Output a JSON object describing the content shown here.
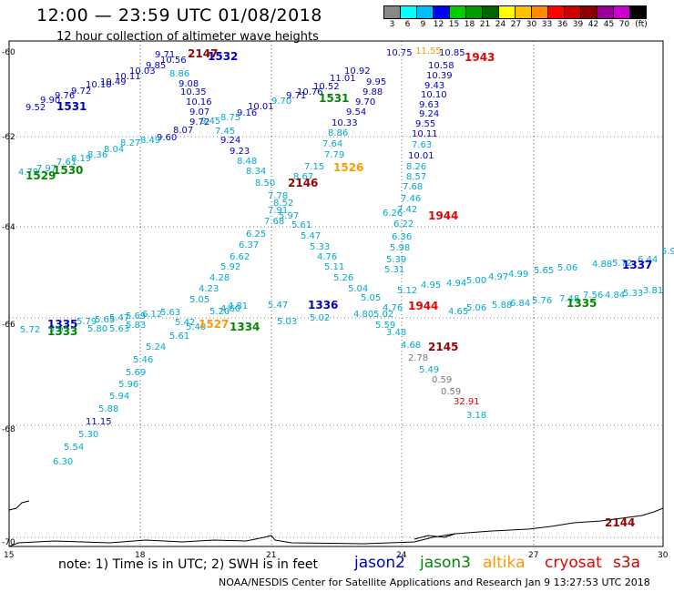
{
  "header": {
    "title": "12:00 — 23:59 UTC 01/08/2018",
    "subtitle": "12 hour collection of altimeter wave heights"
  },
  "legend": {
    "unit": "(ft)",
    "labels": [
      "3",
      "6",
      "9",
      "12",
      "15",
      "18",
      "21",
      "24",
      "27",
      "30",
      "33",
      "36",
      "39",
      "42",
      "45",
      "70"
    ],
    "colors": [
      "#888888",
      "#00ffff",
      "#00bfff",
      "#0000ff",
      "#00cc00",
      "#009900",
      "#006400",
      "#ffff00",
      "#ffc000",
      "#ff8c00",
      "#ff0000",
      "#cc0000",
      "#8b0000",
      "#990099",
      "#cc00cc",
      "#000000"
    ]
  },
  "axes": {
    "lat_labels": [
      "-60",
      "-62",
      "-64",
      "-66",
      "-68",
      "-70"
    ],
    "lon_labels": [
      "15",
      "18",
      "21",
      "24",
      "27",
      "30"
    ]
  },
  "satellites": [
    {
      "name": "jason2",
      "color": "#0000cc"
    },
    {
      "name": "jason3",
      "color": "#008800"
    },
    {
      "name": "altika",
      "color": "#ff9900"
    },
    {
      "name": "cryosat",
      "color": "#ee0000"
    },
    {
      "name": "s3a",
      "color": "#cc0000"
    }
  ],
  "footer": {
    "note": "note: 1) Time is in UTC; 2) SWH is in feet",
    "credit": "NOAA/NESDIS Center for Satellite Applications and Research   Jan  9 13:27:53 UTC 2018"
  },
  "pass_labels": [
    {
      "text": "1532",
      "color": "#0000cc"
    },
    {
      "text": "1531",
      "color": "#0000cc"
    },
    {
      "text": "2147",
      "color": "#990000"
    },
    {
      "text": "1943",
      "color": "#ee0000"
    },
    {
      "text": "1531",
      "color": "#008800"
    },
    {
      "text": "1529",
      "color": "#008800"
    },
    {
      "text": "1530",
      "color": "#008800"
    },
    {
      "text": "1526",
      "color": "#ff9900"
    },
    {
      "text": "2146",
      "color": "#990000"
    },
    {
      "text": "1944",
      "color": "#ee0000"
    },
    {
      "text": "1337",
      "color": "#0000cc"
    },
    {
      "text": "1944",
      "color": "#ee0000"
    },
    {
      "text": "1336",
      "color": "#0000cc"
    },
    {
      "text": "1335",
      "color": "#0000cc"
    },
    {
      "text": "1333",
      "color": "#008800"
    },
    {
      "text": "1527",
      "color": "#ff9900"
    },
    {
      "text": "1334",
      "color": "#008800"
    },
    {
      "text": "1335",
      "color": "#008800"
    },
    {
      "text": "2145",
      "color": "#990000"
    },
    {
      "text": "2144",
      "color": "#990000"
    }
  ],
  "values": [
    {
      "text": "9.52",
      "color": "#0000cc"
    },
    {
      "text": "9.90",
      "color": "#0000cc"
    },
    {
      "text": "9.76",
      "color": "#0000cc"
    },
    {
      "text": "9.72",
      "color": "#0000cc"
    },
    {
      "text": "10.10",
      "color": "#0000cc"
    },
    {
      "text": "10.49",
      "color": "#0000cc"
    },
    {
      "text": "10.11",
      "color": "#0000cc"
    },
    {
      "text": "10.03",
      "color": "#0000cc"
    },
    {
      "text": "9.85",
      "color": "#0000cc"
    },
    {
      "text": "10.56",
      "color": "#0000cc"
    },
    {
      "text": "9.71",
      "color": "#0000cc"
    },
    {
      "text": "8.86",
      "color": "#00aacc"
    },
    {
      "text": "9.08",
      "color": "#0000cc"
    },
    {
      "text": "10.35",
      "color": "#0000cc"
    },
    {
      "text": "10.16",
      "color": "#0000cc"
    },
    {
      "text": "9.07",
      "color": "#0000cc"
    },
    {
      "text": "9.72",
      "color": "#0000cc"
    },
    {
      "text": "9.24",
      "color": "#0000cc"
    },
    {
      "text": "9.23",
      "color": "#0000cc"
    },
    {
      "text": "8.48",
      "color": "#00aacc"
    },
    {
      "text": "8.34",
      "color": "#00aacc"
    },
    {
      "text": "8.50",
      "color": "#00aacc"
    },
    {
      "text": "9.60",
      "color": "#0000cc"
    },
    {
      "text": "8.07",
      "color": "#0000cc"
    },
    {
      "text": "7.45",
      "color": "#00aacc"
    },
    {
      "text": "9.45",
      "color": "#00aacc"
    },
    {
      "text": "8.75",
      "color": "#00aacc"
    },
    {
      "text": "9.16",
      "color": "#0000cc"
    },
    {
      "text": "10.01",
      "color": "#0000cc"
    },
    {
      "text": "9.70",
      "color": "#00aacc"
    },
    {
      "text": "9.71",
      "color": "#0000cc"
    },
    {
      "text": "10.76",
      "color": "#0000cc"
    },
    {
      "text": "10.52",
      "color": "#0000cc"
    },
    {
      "text": "11.01",
      "color": "#0000cc"
    },
    {
      "text": "10.92",
      "color": "#0000cc"
    },
    {
      "text": "10.75",
      "color": "#0000cc"
    },
    {
      "text": "11.55",
      "color": "#ff9900"
    },
    {
      "text": "10.85",
      "color": "#0000cc"
    },
    {
      "text": "10.58",
      "color": "#0000cc"
    },
    {
      "text": "10.39",
      "color": "#0000cc"
    },
    {
      "text": "9.95",
      "color": "#0000cc"
    },
    {
      "text": "9.88",
      "color": "#0000cc"
    },
    {
      "text": "9.70",
      "color": "#0000cc"
    },
    {
      "text": "9.54",
      "color": "#0000cc"
    },
    {
      "text": "10.33",
      "color": "#0000cc"
    },
    {
      "text": "8.86",
      "color": "#00aacc"
    },
    {
      "text": "7.64",
      "color": "#00aacc"
    },
    {
      "text": "7.79",
      "color": "#00aacc"
    },
    {
      "text": "7.15",
      "color": "#00aacc"
    },
    {
      "text": "8.67",
      "color": "#00aacc"
    },
    {
      "text": "9.43",
      "color": "#0000cc"
    },
    {
      "text": "10.10",
      "color": "#0000cc"
    },
    {
      "text": "9.63",
      "color": "#0000cc"
    },
    {
      "text": "9.24",
      "color": "#0000cc"
    },
    {
      "text": "9.55",
      "color": "#0000cc"
    },
    {
      "text": "10.11",
      "color": "#0000cc"
    },
    {
      "text": "7.63",
      "color": "#00aacc"
    },
    {
      "text": "10.01",
      "color": "#0000cc"
    },
    {
      "text": "8.26",
      "color": "#00aacc"
    },
    {
      "text": "8.57",
      "color": "#00aacc"
    },
    {
      "text": "7.68",
      "color": "#00aacc"
    },
    {
      "text": "7.46",
      "color": "#00aacc"
    },
    {
      "text": "7.42",
      "color": "#00aacc"
    },
    {
      "text": "6.26",
      "color": "#00aacc"
    },
    {
      "text": "6.22",
      "color": "#00aacc"
    },
    {
      "text": "6.36",
      "color": "#00aacc"
    },
    {
      "text": "5.98",
      "color": "#00aacc"
    },
    {
      "text": "5.39",
      "color": "#00aacc"
    },
    {
      "text": "5.31",
      "color": "#00aacc"
    },
    {
      "text": "4.79",
      "color": "#00aacc"
    },
    {
      "text": "7.97",
      "color": "#00aacc"
    },
    {
      "text": "7.61",
      "color": "#00aacc"
    },
    {
      "text": "8.19",
      "color": "#00aacc"
    },
    {
      "text": "8.36",
      "color": "#00aacc"
    },
    {
      "text": "8.04",
      "color": "#00aacc"
    },
    {
      "text": "8.27",
      "color": "#00aacc"
    },
    {
      "text": "8.49",
      "color": "#00aacc"
    },
    {
      "text": "7.78",
      "color": "#00aacc"
    },
    {
      "text": "8.52",
      "color": "#00aacc"
    },
    {
      "text": "7.91",
      "color": "#00aacc"
    },
    {
      "text": "5.97",
      "color": "#00aacc"
    },
    {
      "text": "7.68",
      "color": "#00aacc"
    },
    {
      "text": "5.61",
      "color": "#00aacc"
    },
    {
      "text": "6.25",
      "color": "#00aacc"
    },
    {
      "text": "5.47",
      "color": "#00aacc"
    },
    {
      "text": "6.37",
      "color": "#00aacc"
    },
    {
      "text": "5.33",
      "color": "#00aacc"
    },
    {
      "text": "6.62",
      "color": "#00aacc"
    },
    {
      "text": "4.76",
      "color": "#00aacc"
    },
    {
      "text": "5.92",
      "color": "#00aacc"
    },
    {
      "text": "5.11",
      "color": "#00aacc"
    },
    {
      "text": "4.28",
      "color": "#00aacc"
    },
    {
      "text": "5.26",
      "color": "#00aacc"
    },
    {
      "text": "4.23",
      "color": "#00aacc"
    },
    {
      "text": "5.04",
      "color": "#00aacc"
    },
    {
      "text": "5.05",
      "color": "#00aacc"
    },
    {
      "text": "5.05",
      "color": "#00aacc"
    },
    {
      "text": "5.20",
      "color": "#00aacc"
    },
    {
      "text": "4.60",
      "color": "#00aacc"
    },
    {
      "text": "4.81",
      "color": "#00aacc"
    },
    {
      "text": "5.47",
      "color": "#00aacc"
    },
    {
      "text": "5.12",
      "color": "#00aacc"
    },
    {
      "text": "4.95",
      "color": "#00aacc"
    },
    {
      "text": "4.94",
      "color": "#00aacc"
    },
    {
      "text": "5.00",
      "color": "#00aacc"
    },
    {
      "text": "4.97",
      "color": "#00aacc"
    },
    {
      "text": "4.99",
      "color": "#00aacc"
    },
    {
      "text": "5.65",
      "color": "#00aacc"
    },
    {
      "text": "5.06",
      "color": "#00aacc"
    },
    {
      "text": "4.88",
      "color": "#00aacc"
    },
    {
      "text": "5.72",
      "color": "#00aacc"
    },
    {
      "text": "6.44",
      "color": "#00aacc"
    },
    {
      "text": "5.96",
      "color": "#00aacc"
    },
    {
      "text": "5.79",
      "color": "#00aacc"
    },
    {
      "text": "5.65",
      "color": "#00aacc"
    },
    {
      "text": "5.47",
      "color": "#00aacc"
    },
    {
      "text": "5.69",
      "color": "#00aacc"
    },
    {
      "text": "6.12",
      "color": "#00aacc"
    },
    {
      "text": "5.63",
      "color": "#00aacc"
    },
    {
      "text": "5.42",
      "color": "#00aacc"
    },
    {
      "text": "5.40",
      "color": "#00aacc"
    },
    {
      "text": "5.61",
      "color": "#00aacc"
    },
    {
      "text": "5.24",
      "color": "#00aacc"
    },
    {
      "text": "5.46",
      "color": "#00aacc"
    },
    {
      "text": "5.69",
      "color": "#00aacc"
    },
    {
      "text": "5.96",
      "color": "#00aacc"
    },
    {
      "text": "5.94",
      "color": "#00aacc"
    },
    {
      "text": "5.88",
      "color": "#00aacc"
    },
    {
      "text": "11.15",
      "color": "#0000cc"
    },
    {
      "text": "5.30",
      "color": "#00aacc"
    },
    {
      "text": "5.54",
      "color": "#00aacc"
    },
    {
      "text": "6.30",
      "color": "#00aacc"
    },
    {
      "text": "5.72",
      "color": "#00aacc"
    },
    {
      "text": "5.65",
      "color": "#00aacc"
    },
    {
      "text": "5.80",
      "color": "#00aacc"
    },
    {
      "text": "5.63",
      "color": "#00aacc"
    },
    {
      "text": "5.83",
      "color": "#00aacc"
    },
    {
      "text": "5.03",
      "color": "#00aacc"
    },
    {
      "text": "5.02",
      "color": "#00aacc"
    },
    {
      "text": "4.80",
      "color": "#00aacc"
    },
    {
      "text": "5.02",
      "color": "#00aacc"
    },
    {
      "text": "5.59",
      "color": "#00aacc"
    },
    {
      "text": "4.76",
      "color": "#00aacc"
    },
    {
      "text": "4.65",
      "color": "#00aacc"
    },
    {
      "text": "5.06",
      "color": "#00aacc"
    },
    {
      "text": "5.88",
      "color": "#00aacc"
    },
    {
      "text": "6.84",
      "color": "#00aacc"
    },
    {
      "text": "5.76",
      "color": "#00aacc"
    },
    {
      "text": "7.48",
      "color": "#00aacc"
    },
    {
      "text": "7.56",
      "color": "#00aacc"
    },
    {
      "text": "4.84",
      "color": "#00aacc"
    },
    {
      "text": "5.33",
      "color": "#00aacc"
    },
    {
      "text": "3.81",
      "color": "#00aacc"
    },
    {
      "text": "3.48",
      "color": "#00aacc"
    },
    {
      "text": "4.68",
      "color": "#00aacc"
    },
    {
      "text": "2.78",
      "color": "#777777"
    },
    {
      "text": "5.49",
      "color": "#00aacc"
    },
    {
      "text": "0.59",
      "color": "#777777"
    },
    {
      "text": "0.59",
      "color": "#777777"
    },
    {
      "text": "32.91",
      "color": "#ee0000"
    },
    {
      "text": "3.18",
      "color": "#00aacc"
    }
  ]
}
